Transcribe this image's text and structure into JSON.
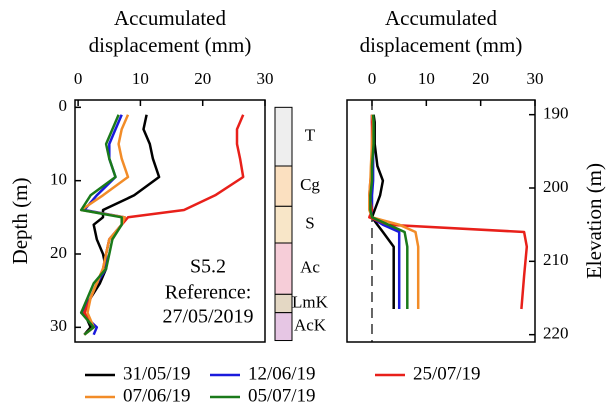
{
  "chart_data": [
    {
      "type": "line",
      "xlabel": [
        "Accumulated",
        "displacement (mm)"
      ],
      "ylabel": "Depth (m)",
      "xlim": [
        -0.5,
        30
      ],
      "xticks": [
        0,
        10,
        20,
        30
      ],
      "ylim": [
        -1,
        32
      ],
      "yticks": [
        0,
        10,
        20,
        30
      ],
      "y": [
        1,
        3,
        5,
        7,
        9.5,
        12,
        14,
        15,
        16,
        18,
        20,
        22,
        24,
        26,
        28,
        30,
        31
      ],
      "series": [
        {
          "name": "31/05/19",
          "color": "#000000",
          "values": [
            11,
            10.5,
            11.5,
            12,
            13,
            9,
            4,
            4,
            2.5,
            3,
            4,
            4.5,
            3.5,
            2,
            1,
            2,
            1
          ]
        },
        {
          "name": "12/06/19",
          "color": "#1a1adc",
          "values": [
            7,
            6,
            5,
            5,
            6,
            3,
            1,
            7.5,
            7,
            5,
            4.5,
            4.5,
            3,
            2,
            0.5,
            3,
            2.5
          ]
        },
        {
          "name": "25/07/19",
          "color": "#e8201a",
          "values": [
            26.5,
            25.5,
            25.5,
            26,
            26.5,
            22,
            17,
            8,
            7,
            5,
            4.5,
            4,
            3,
            2,
            1,
            2.5,
            1
          ]
        },
        {
          "name": "07/06/19",
          "color": "#f28c28",
          "values": [
            8,
            7,
            6.5,
            7,
            8,
            4,
            0.5,
            7.5,
            7,
            5,
            4.5,
            4,
            3,
            2,
            1.5,
            2.5,
            1
          ]
        },
        {
          "name": "05/07/19",
          "color": "#1a7a1a",
          "values": [
            6.5,
            5.5,
            4.5,
            5,
            6,
            2,
            0.5,
            7,
            7,
            5.5,
            5,
            4.5,
            2.5,
            1.5,
            0.5,
            2.5,
            1
          ]
        }
      ],
      "annotation": [
        "S5.2",
        "Reference:",
        "27/05/2019"
      ],
      "soil_column": [
        {
          "label": "T",
          "top": 0,
          "bottom": 8,
          "color": "#eeeeee"
        },
        {
          "label": "Cg",
          "top": 8,
          "bottom": 13.5,
          "color": "#fbe0c0"
        },
        {
          "label": "S",
          "top": 13.5,
          "bottom": 18.5,
          "color": "#f8e6c8"
        },
        {
          "label": "Ac",
          "top": 18.5,
          "bottom": 25.5,
          "color": "#f6cdd8"
        },
        {
          "label": "LmK",
          "top": 25.5,
          "bottom": 28,
          "color": "#e4d8c4"
        },
        {
          "label": "AcK",
          "top": 28,
          "bottom": 31.8,
          "color": "#e6c6e4"
        }
      ]
    },
    {
      "type": "line",
      "xlabel": [
        "Accumulated",
        "displacement (mm)"
      ],
      "ylabel": "Elevation (m)",
      "xlim": [
        -4.6,
        30
      ],
      "xticks": [
        0,
        10,
        20,
        30
      ],
      "ylim": [
        188,
        221
      ],
      "yticks": [
        190,
        200,
        210,
        220
      ],
      "reference_line": 0,
      "y": [
        216.5,
        212,
        208,
        206,
        205,
        204,
        203,
        201,
        199,
        197,
        194,
        191,
        190
      ],
      "series": [
        {
          "color": "#000000",
          "values": [
            4,
            4,
            4,
            2,
            1,
            0,
            0.5,
            1.5,
            2,
            1,
            0.5,
            0.5,
            0.3
          ]
        },
        {
          "color": "#1a1adc",
          "values": [
            5,
            5,
            5,
            5,
            2,
            -0.2,
            0,
            0,
            0.2,
            0.2,
            0.2,
            0,
            0
          ]
        },
        {
          "color": "#e8201a",
          "values": [
            27.5,
            28,
            28.5,
            28,
            3,
            -0.5,
            0,
            -0.5,
            -0.3,
            0,
            0,
            0,
            0
          ]
        },
        {
          "color": "#f28c28",
          "values": [
            8.5,
            8.5,
            8.5,
            8,
            5,
            0,
            -0.5,
            -0.5,
            -0.3,
            -0.2,
            0,
            0.2,
            0
          ]
        },
        {
          "color": "#1a7a1a",
          "values": [
            6.5,
            6.5,
            6.5,
            6,
            3,
            0,
            -0.3,
            -0.3,
            0,
            0,
            0.3,
            0.3,
            0.2
          ]
        }
      ]
    }
  ]
}
